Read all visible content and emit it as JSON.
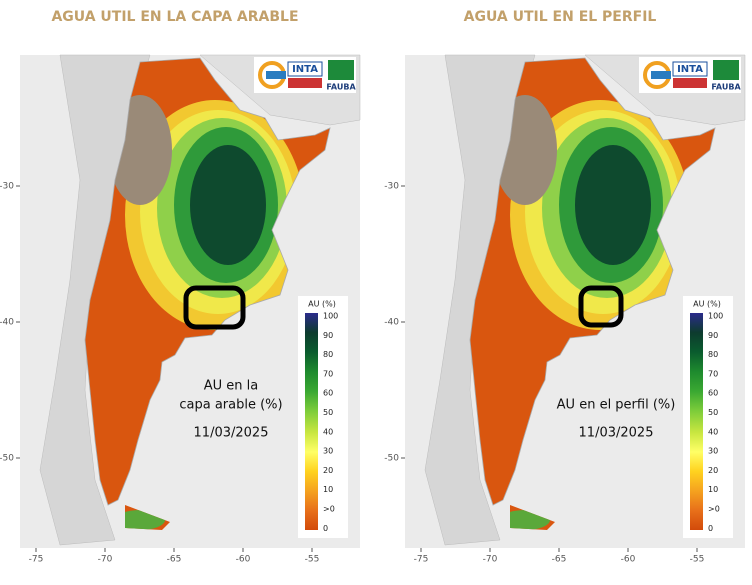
{
  "panels": [
    {
      "title": "AGUA UTIL EN LA CAPA ARABLE",
      "annotation": [
        "AU en la",
        "capa arable (%)"
      ],
      "date": "11/03/2025",
      "legend_title": "AU (%)",
      "legend_labels": [
        "100",
        "90",
        "80",
        "70",
        "60",
        "50",
        "40",
        "30",
        "20",
        "10",
        ">0",
        "0"
      ],
      "x_ticks": [
        "-75",
        "-70",
        "-65",
        "-60",
        "-55"
      ],
      "y_ticks": [
        "-30",
        "-40",
        "-50"
      ],
      "logos": [
        "INTA",
        "FAUBA"
      ]
    },
    {
      "title": "AGUA UTIL EN EL PERFIL",
      "annotation": [
        "AU en el perfil (%)"
      ],
      "date": "11/03/2025",
      "legend_title": "AU (%)",
      "legend_labels": [
        "100",
        "90",
        "80",
        "70",
        "60",
        "50",
        "40",
        "30",
        "20",
        "10",
        ">0",
        "0"
      ],
      "x_ticks": [
        "-75",
        "-70",
        "-65",
        "-60",
        "-55"
      ],
      "y_ticks": [
        "-30",
        "-40",
        "-50"
      ],
      "logos": [
        "INTA",
        "FAUBA"
      ]
    }
  ]
}
